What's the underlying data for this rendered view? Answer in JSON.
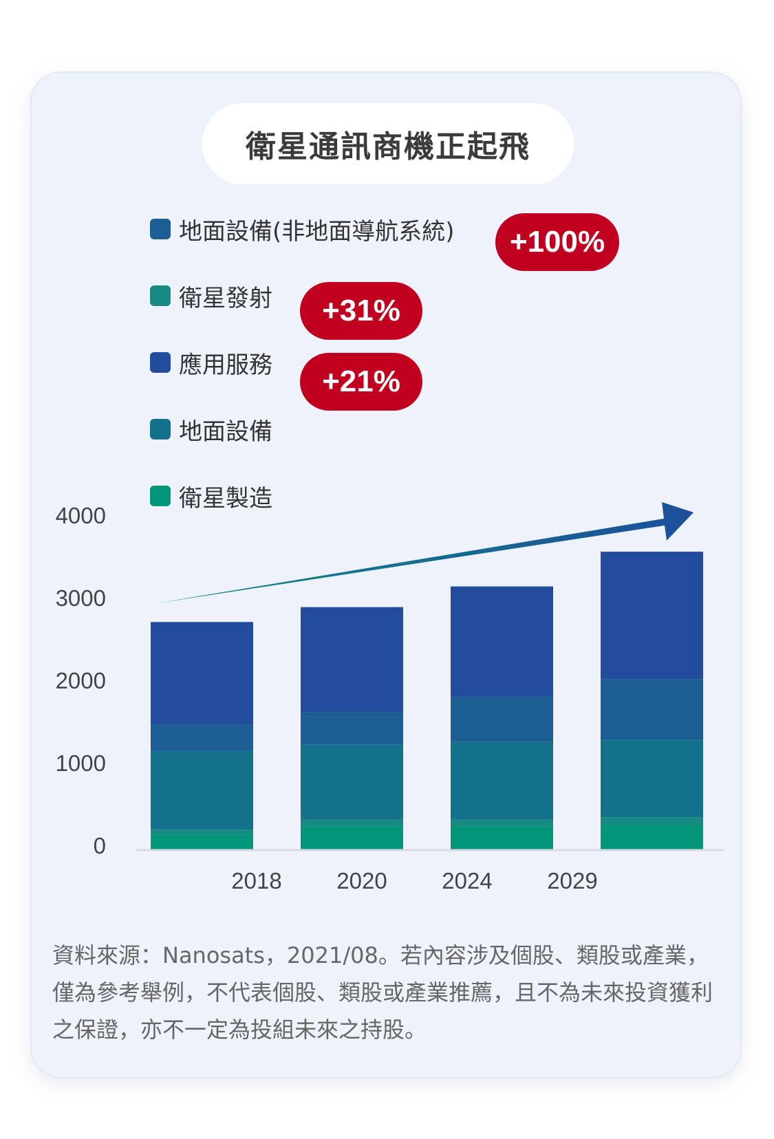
{
  "title": "衛星通訊商機正起飛",
  "legend": [
    {
      "label": "地面設備(非地面導航系統)",
      "color": "#1b5e94",
      "badge": "+100%"
    },
    {
      "label": "衛星發射",
      "color": "#168b83",
      "badge": "+31%"
    },
    {
      "label": "應用服務",
      "color": "#224c9c",
      "badge": "+21%"
    },
    {
      "label": "地面設備",
      "color": "#13718b",
      "badge": ""
    },
    {
      "label": "衛星製造",
      "color": "#03967a",
      "badge": ""
    }
  ],
  "chart_data": {
    "type": "bar",
    "stacked": true,
    "categories": [
      "2018",
      "2020",
      "2024",
      "2029"
    ],
    "ylim": [
      0,
      4000
    ],
    "yticks": [
      0,
      1000,
      2000,
      3000,
      4000
    ],
    "series": [
      {
        "name": "衛星製造",
        "color": "#03967a",
        "values": [
          180,
          280,
          280,
          300
        ]
      },
      {
        "name": "衛星發射",
        "color": "#168b83",
        "values": [
          60,
          80,
          80,
          90
        ]
      },
      {
        "name": "地面設備",
        "color": "#13718b",
        "values": [
          950,
          910,
          940,
          940
        ]
      },
      {
        "name": "地面設備(非地面導航系統)",
        "color": "#1b5e94",
        "values": [
          320,
          390,
          550,
          730
        ]
      },
      {
        "name": "應用服務",
        "color": "#224c9c",
        "values": [
          1240,
          1270,
          1330,
          1540
        ]
      }
    ],
    "trend_arrow_color_start": "#0e8a80",
    "trend_arrow_color_end": "#1d4f9c"
  },
  "footnote": "資料來源：Nanosats，2021/08。若內容涉及個股、類股或產業，僅為參考舉例，不代表個股、類股或產業推薦，且不為未來投資獲利之保證，亦不一定為投組未來之持股。"
}
